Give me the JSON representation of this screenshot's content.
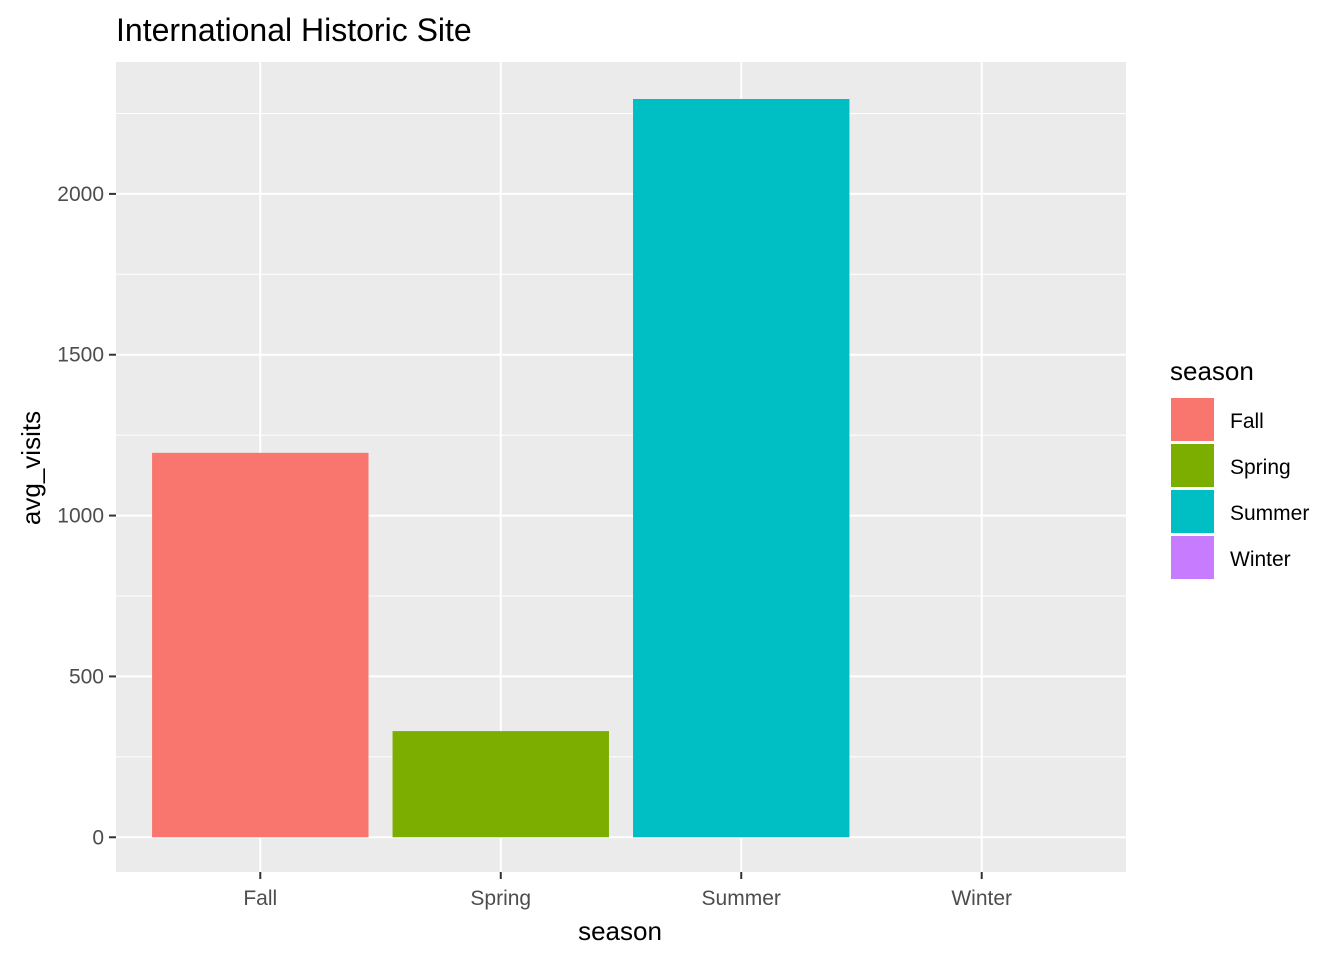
{
  "chart_data": {
    "type": "bar",
    "title": "International Historic Site",
    "xlabel": "season",
    "ylabel": "avg_visits",
    "categories": [
      "Fall",
      "Spring",
      "Summer",
      "Winter"
    ],
    "values": [
      1195,
      330,
      2295,
      0
    ],
    "ylim": [
      -108,
      2410
    ],
    "yticks": [
      "0",
      "500",
      "1000",
      "1500",
      "2000"
    ],
    "ytick_values": [
      0,
      500,
      1000,
      1500,
      2000
    ],
    "grid": true,
    "colors": {
      "Fall": "#F8766D",
      "Spring": "#7CAE00",
      "Summer": "#00BFC4",
      "Winter": "#C77CFF"
    },
    "panel_background": "#EBEBEB",
    "legend": {
      "title": "season",
      "placement": "right",
      "items": [
        "Fall",
        "Spring",
        "Summer",
        "Winter"
      ]
    }
  }
}
